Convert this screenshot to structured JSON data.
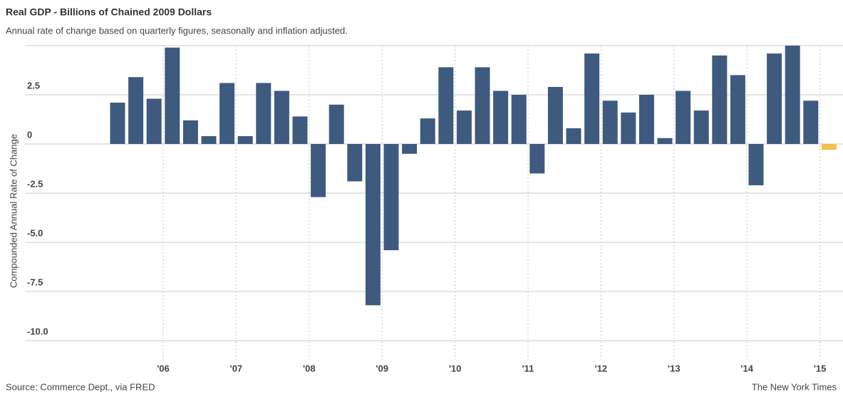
{
  "chart_data": {
    "type": "bar",
    "title": "Real GDP - Billions of Chained 2009 Dollars",
    "subtitle": "Annual rate of change based on quarterly figures, seasonally and inflation adjusted.",
    "ylabel": "Compounded Annual Rate of Change",
    "source": "Source: Commerce Dept., via FRED",
    "credit": "The New York Times",
    "categories": [
      null,
      null,
      null,
      null,
      null,
      null,
      null,
      null,
      null,
      null,
      null,
      null,
      null,
      null,
      null,
      null,
      null,
      null,
      null,
      null,
      null,
      null,
      null,
      null,
      null,
      null,
      null,
      null,
      null,
      null,
      null,
      null,
      null,
      null,
      null,
      null,
      null,
      null,
      null,
      null
    ],
    "year_labels": [
      "'06",
      "'07",
      "'08",
      "'09",
      "'10",
      "'11",
      "'12",
      "'13",
      "'14",
      "'15"
    ],
    "values": [
      2.1,
      3.4,
      2.3,
      4.9,
      1.2,
      0.4,
      3.1,
      0.4,
      3.1,
      2.7,
      1.4,
      -2.7,
      2.0,
      -1.9,
      -8.2,
      -5.4,
      -0.5,
      1.3,
      3.9,
      1.7,
      3.9,
      2.7,
      2.5,
      -1.5,
      2.9,
      0.8,
      4.6,
      2.2,
      1.6,
      2.5,
      0.3,
      2.7,
      1.7,
      4.5,
      3.5,
      -2.1,
      4.6,
      5.0,
      2.2,
      -0.3
    ],
    "colors": [
      "#3e5a7f",
      "#3e5a7f",
      "#3e5a7f",
      "#3e5a7f",
      "#3e5a7f",
      "#3e5a7f",
      "#3e5a7f",
      "#3e5a7f",
      "#3e5a7f",
      "#3e5a7f",
      "#3e5a7f",
      "#3e5a7f",
      "#3e5a7f",
      "#3e5a7f",
      "#3e5a7f",
      "#3e5a7f",
      "#3e5a7f",
      "#3e5a7f",
      "#3e5a7f",
      "#3e5a7f",
      "#3e5a7f",
      "#3e5a7f",
      "#3e5a7f",
      "#3e5a7f",
      "#3e5a7f",
      "#3e5a7f",
      "#3e5a7f",
      "#3e5a7f",
      "#3e5a7f",
      "#3e5a7f",
      "#3e5a7f",
      "#3e5a7f",
      "#3e5a7f",
      "#3e5a7f",
      "#3e5a7f",
      "#3e5a7f",
      "#3e5a7f",
      "#3e5a7f",
      "#3e5a7f",
      "#f2c14e"
    ],
    "ylim": [
      -10,
      5
    ],
    "yticks": [
      2.5,
      0,
      -2.5,
      {
        "value": -5,
        "label": "-5.0"
      },
      -7.5,
      {
        "value": -10,
        "label": "-10.0"
      }
    ],
    "grid": true
  }
}
